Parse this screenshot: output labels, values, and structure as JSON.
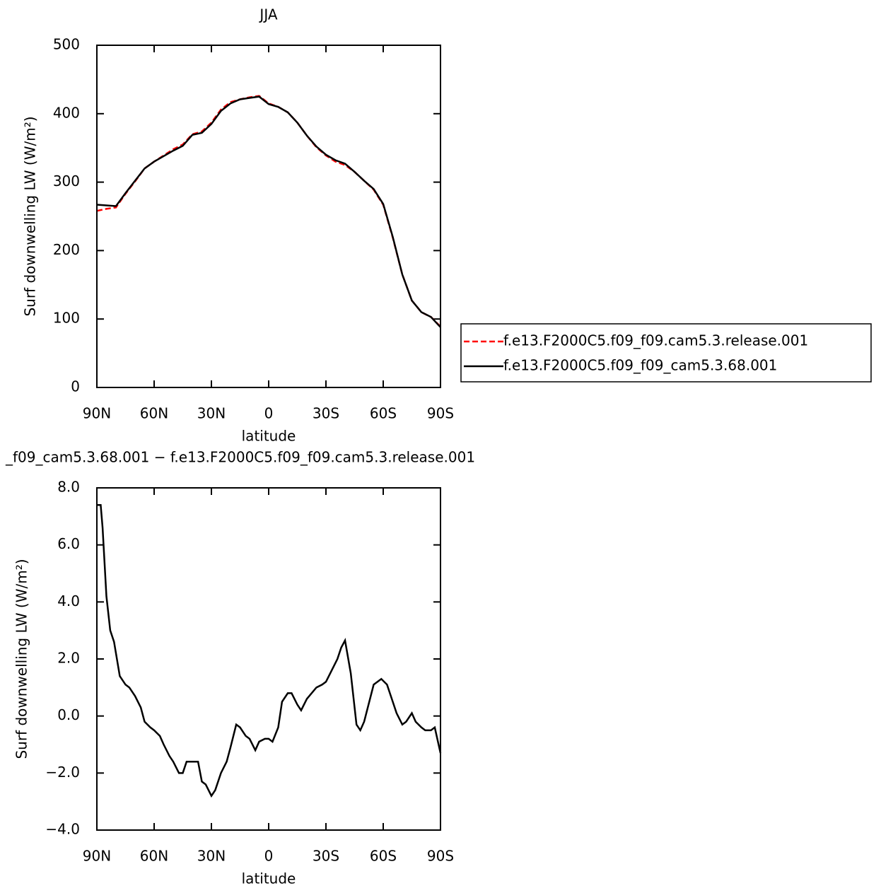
{
  "chart_data": [
    {
      "type": "line",
      "title": "JJA",
      "xlabel": "latitude",
      "ylabel": "Surf downwelling LW (W/m²)",
      "x": [
        90,
        85,
        80,
        75,
        70,
        65,
        60,
        55,
        50,
        45,
        40,
        35,
        30,
        25,
        20,
        15,
        10,
        5,
        0,
        -5,
        -10,
        -15,
        -20,
        -25,
        -30,
        -35,
        -40,
        -45,
        -50,
        -55,
        -60,
        -65,
        -70,
        -75,
        -80,
        -85,
        -90
      ],
      "xlim": [
        90,
        -90
      ],
      "xticks": [
        {
          "value": 90,
          "label": "90N"
        },
        {
          "value": 60,
          "label": "60N"
        },
        {
          "value": 30,
          "label": "30N"
        },
        0,
        {
          "value": -30,
          "label": "30S"
        },
        {
          "value": -60,
          "label": "60S"
        },
        {
          "value": -90,
          "label": "90S"
        }
      ],
      "ylim": [
        0,
        500
      ],
      "yticks": [
        0,
        100,
        200,
        300,
        400,
        500
      ],
      "legend": "outside-right",
      "series": [
        {
          "name": "f.e13.F2000C5.f09_f09.cam5.3.release.001",
          "color": "#ff0000",
          "dash": true,
          "values": [
            258,
            261,
            263,
            283,
            301,
            320,
            330,
            339,
            348,
            355,
            370,
            374,
            387,
            406,
            417,
            421,
            424,
            426,
            415,
            410,
            402,
            387,
            368,
            351,
            339,
            330,
            325,
            315,
            302,
            289,
            267,
            219,
            165,
            127,
            110,
            103,
            89
          ]
        },
        {
          "name": "f.e13.F2000C5.f09_f09_cam5.3.68.001",
          "color": "#000000",
          "dash": false,
          "values": [
            267,
            266,
            265,
            284,
            302,
            320,
            330,
            338,
            346,
            353,
            369,
            372,
            385,
            404,
            415,
            421,
            423,
            425,
            414,
            410,
            402,
            387,
            368,
            352,
            340,
            332,
            327,
            315,
            302,
            290,
            268,
            220,
            165,
            127,
            110,
            103,
            88
          ]
        }
      ]
    },
    {
      "type": "line",
      "title": "_f09_cam5.3.68.001 − f.e13.F2000C5.f09_f09.cam5.3.release.001",
      "xlabel": "latitude",
      "ylabel": "Surf downwelling LW (W/m²)",
      "x": [
        90,
        88,
        87,
        85,
        83,
        81,
        80,
        78,
        75,
        73,
        70,
        67,
        65,
        62,
        60,
        57,
        55,
        52,
        50,
        47,
        45,
        43,
        40,
        37,
        35,
        33,
        30,
        28,
        25,
        22,
        20,
        17,
        15,
        12,
        10,
        7,
        5,
        2,
        0,
        -2,
        -5,
        -7,
        -10,
        -12,
        -15,
        -17,
        -20,
        -25,
        -28,
        -30,
        -33,
        -36,
        -38,
        -40,
        -43,
        -46,
        -48,
        -50,
        -55,
        -59,
        -62,
        -65,
        -67,
        -70,
        -72,
        -75,
        -77,
        -80,
        -82,
        -85,
        -87,
        -90
      ],
      "xlim": [
        90,
        -90
      ],
      "xticks": [
        {
          "value": 90,
          "label": "90N"
        },
        {
          "value": 60,
          "label": "60N"
        },
        {
          "value": 30,
          "label": "30N"
        },
        0,
        {
          "value": -30,
          "label": "30S"
        },
        {
          "value": -60,
          "label": "60S"
        },
        {
          "value": -90,
          "label": "90S"
        }
      ],
      "ylim": [
        -4,
        8
      ],
      "yticks": [
        {
          "value": -4,
          "label": "−4.0"
        },
        {
          "value": -2,
          "label": "−2.0"
        },
        {
          "value": 0,
          "label": "0.0"
        },
        {
          "value": 2,
          "label": "2.0"
        },
        {
          "value": 4,
          "label": "4.0"
        },
        {
          "value": 6,
          "label": "6.0"
        },
        {
          "value": 8,
          "label": "8.0"
        }
      ],
      "series": [
        {
          "color": "#000000",
          "dash": false,
          "values": [
            7.4,
            7.4,
            6.6,
            4.2,
            3.0,
            2.6,
            2.2,
            1.4,
            1.1,
            1.0,
            0.7,
            0.3,
            -0.2,
            -0.4,
            -0.5,
            -0.7,
            -1.0,
            -1.4,
            -1.6,
            -2.0,
            -2.0,
            -1.6,
            -1.6,
            -1.6,
            -2.3,
            -2.4,
            -2.8,
            -2.6,
            -2.0,
            -1.6,
            -1.1,
            -0.3,
            -0.4,
            -0.7,
            -0.8,
            -1.2,
            -0.9,
            -0.8,
            -0.8,
            -0.9,
            -0.4,
            0.5,
            0.8,
            0.8,
            0.4,
            0.2,
            0.6,
            1.0,
            1.1,
            1.2,
            1.6,
            2.0,
            2.4,
            2.65,
            1.5,
            -0.3,
            -0.5,
            -0.2,
            1.1,
            1.3,
            1.1,
            0.5,
            0.1,
            -0.3,
            -0.2,
            0.1,
            -0.2,
            -0.4,
            -0.5,
            -0.5,
            -0.4,
            -1.3
          ]
        }
      ]
    }
  ]
}
